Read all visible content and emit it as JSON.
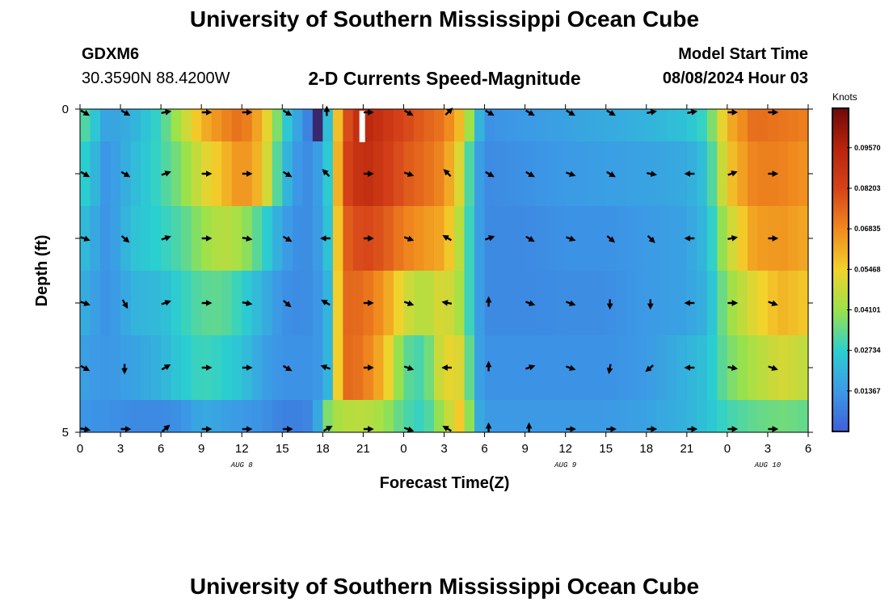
{
  "page": {
    "title": "University of Southern Mississippi Ocean Cube",
    "station": "GDXM6",
    "coords": "30.3590N  88.4200W",
    "subtitle": "2-D Currents Speed-Magnitude",
    "model_label": "Model Start Time",
    "model_time": "08/08/2024 Hour 03",
    "second_title": "University of Southern Mississippi Ocean Cube"
  },
  "chart_data": {
    "type": "heatmap",
    "title": "2-D Currents Speed-Magnitude",
    "xlabel": "Forecast Time(Z)",
    "ylabel": "Depth (ft)",
    "x_tick_labels": [
      "0",
      "3",
      "6",
      "9",
      "12",
      "15",
      "18",
      "21",
      "0",
      "3",
      "6",
      "9",
      "12",
      "15",
      "18",
      "21",
      "0",
      "3",
      "6"
    ],
    "x_hours": [
      0,
      3,
      6,
      9,
      12,
      15,
      18,
      21,
      24,
      27,
      30,
      33,
      36,
      39,
      42,
      45,
      48,
      51,
      54
    ],
    "date_labels": [
      {
        "label": "AUG 8",
        "hour": 12
      },
      {
        "label": "AUG 9",
        "hour": 36
      },
      {
        "label": "AUG 10",
        "hour": 51
      }
    ],
    "y_tick_labels": [
      "0",
      "5"
    ],
    "ylim": [
      0,
      5
    ],
    "xlim": [
      0,
      54
    ],
    "depth_rows": [
      0.5,
      1.5,
      2.5,
      3.5,
      4.5
    ],
    "colorbar": {
      "title": "Knots",
      "range": [
        0,
        0.109
      ],
      "tick_labels": [
        "0.01367",
        "0.02734",
        "0.04101",
        "0.05468",
        "0.06835",
        "0.08203",
        "0.09570"
      ],
      "tick_values": [
        0.01367,
        0.02734,
        0.04101,
        0.05468,
        0.06835,
        0.08203,
        0.0957
      ]
    },
    "profiles": {
      "depths": [
        0.25,
        1,
        2,
        3,
        4,
        4.75
      ],
      "cols": [
        "h",
        "s0",
        "s1",
        "s2",
        "s3",
        "s4"
      ],
      "rows": [
        [
          0,
          0.035,
          0.03,
          0.024,
          0.02,
          0.016,
          0.013
        ],
        [
          1,
          0.026,
          0.022,
          0.018,
          0.016,
          0.014,
          0.012
        ],
        [
          2,
          0.015,
          0.012,
          0.012,
          0.012,
          0.013,
          0.012
        ],
        [
          4,
          0.02,
          0.022,
          0.024,
          0.02,
          0.016,
          0.01
        ],
        [
          6,
          0.03,
          0.03,
          0.028,
          0.022,
          0.02,
          0.01
        ],
        [
          7.5,
          0.045,
          0.038,
          0.032,
          0.028,
          0.026,
          0.012
        ],
        [
          9,
          0.06,
          0.05,
          0.04,
          0.033,
          0.03,
          0.018
        ],
        [
          10.5,
          0.068,
          0.058,
          0.046,
          0.034,
          0.028,
          0.016
        ],
        [
          12,
          0.074,
          0.068,
          0.042,
          0.028,
          0.024,
          0.014
        ],
        [
          13.5,
          0.06,
          0.058,
          0.03,
          0.02,
          0.016,
          0.012
        ],
        [
          15,
          0.03,
          0.024,
          0.016,
          0.012,
          0.012,
          0.008
        ],
        [
          16.5,
          0.012,
          0.01,
          0.01,
          0.01,
          0.012,
          0.008
        ],
        [
          17.4,
          0.004,
          0.012,
          0.012,
          0.012,
          0.012,
          0.01
        ],
        [
          18,
          0.002,
          0.02,
          0.018,
          0.016,
          0.016,
          0.03
        ],
        [
          18.5,
          0.03,
          0.028,
          0.026,
          0.022,
          0.022,
          0.04
        ],
        [
          19.5,
          0.075,
          0.08,
          0.075,
          0.075,
          0.075,
          0.045
        ],
        [
          21,
          0.095,
          0.092,
          0.082,
          0.074,
          0.072,
          0.046
        ],
        [
          22.5,
          0.088,
          0.086,
          0.078,
          0.066,
          0.06,
          0.042
        ],
        [
          24,
          0.082,
          0.078,
          0.07,
          0.05,
          0.034,
          0.032
        ],
        [
          25.5,
          0.076,
          0.074,
          0.066,
          0.044,
          0.03,
          0.028
        ],
        [
          27,
          0.072,
          0.068,
          0.062,
          0.052,
          0.054,
          0.044
        ],
        [
          28.5,
          0.055,
          0.045,
          0.04,
          0.04,
          0.05,
          0.06
        ],
        [
          29.2,
          0.03,
          0.02,
          0.02,
          0.02,
          0.02,
          0.022
        ],
        [
          30,
          0.012,
          0.01,
          0.01,
          0.01,
          0.012,
          0.014
        ],
        [
          33,
          0.014,
          0.012,
          0.01,
          0.01,
          0.012,
          0.014
        ],
        [
          36,
          0.016,
          0.014,
          0.012,
          0.011,
          0.012,
          0.014
        ],
        [
          39,
          0.018,
          0.015,
          0.012,
          0.011,
          0.012,
          0.014
        ],
        [
          42,
          0.02,
          0.016,
          0.014,
          0.014,
          0.014,
          0.016
        ],
        [
          45,
          0.024,
          0.018,
          0.016,
          0.016,
          0.02,
          0.02
        ],
        [
          46.5,
          0.03,
          0.024,
          0.022,
          0.02,
          0.024,
          0.024
        ],
        [
          48,
          0.06,
          0.056,
          0.046,
          0.04,
          0.036,
          0.03
        ],
        [
          50,
          0.074,
          0.07,
          0.064,
          0.052,
          0.044,
          0.034
        ],
        [
          52,
          0.072,
          0.07,
          0.066,
          0.06,
          0.05,
          0.036
        ],
        [
          54,
          0.07,
          0.066,
          0.062,
          0.056,
          0.046,
          0.034
        ]
      ]
    },
    "bad_data": [
      {
        "hour": 20.9,
        "depth_from": 0,
        "depth_to": 0.5
      }
    ],
    "vector_hours": [
      0,
      3,
      6,
      9,
      12,
      15,
      18,
      21,
      24,
      27,
      30,
      33,
      36,
      39,
      42,
      45,
      48,
      51
    ],
    "vector_depths": [
      0,
      1,
      2,
      3,
      4,
      5
    ],
    "vector_dirs_deg": [
      [
        -30,
        -30,
        10,
        0,
        0,
        -30,
        90,
        0,
        -30,
        45,
        -30,
        -30,
        -30,
        -30,
        10,
        10,
        0,
        0
      ],
      [
        -30,
        -30,
        20,
        0,
        0,
        -30,
        135,
        0,
        -20,
        135,
        -30,
        -30,
        -20,
        -30,
        -10,
        180,
        20,
        0
      ],
      [
        -20,
        -40,
        20,
        0,
        -10,
        -30,
        180,
        0,
        -20,
        150,
        20,
        -30,
        -20,
        -40,
        -45,
        180,
        10,
        0
      ],
      [
        -20,
        -60,
        20,
        0,
        -10,
        -40,
        150,
        0,
        -20,
        170,
        90,
        -20,
        -20,
        -90,
        -90,
        180,
        0,
        -20
      ],
      [
        -30,
        -90,
        30,
        0,
        0,
        -30,
        160,
        0,
        -20,
        180,
        90,
        20,
        -20,
        -100,
        -140,
        180,
        -10,
        -20
      ],
      [
        -10,
        0,
        40,
        0,
        0,
        0,
        30,
        0,
        -20,
        150,
        90,
        90,
        0,
        0,
        0,
        0,
        0,
        0
      ]
    ]
  }
}
